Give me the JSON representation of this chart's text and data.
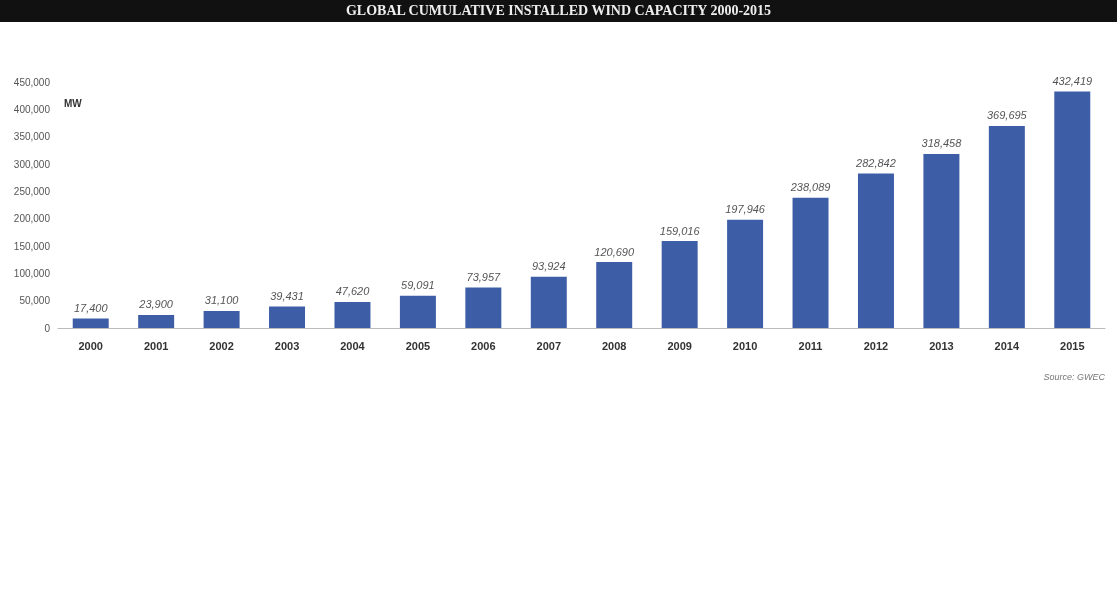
{
  "chart_data": {
    "type": "bar",
    "title": "GLOBAL CUMULATIVE INSTALLED WIND CAPACITY 2000-2015",
    "ylabel": "MW",
    "categories": [
      "2000",
      "2001",
      "2002",
      "2003",
      "2004",
      "2005",
      "2006",
      "2007",
      "2008",
      "2009",
      "2010",
      "2011",
      "2012",
      "2013",
      "2014",
      "2015"
    ],
    "values": [
      17400,
      23900,
      31100,
      39431,
      47620,
      59091,
      73957,
      93924,
      120690,
      159016,
      197946,
      238089,
      282842,
      318458,
      369695,
      432419
    ],
    "value_labels": [
      "17,400",
      "23,900",
      "31,100",
      "39,431",
      "47,620",
      "59,091",
      "73,957",
      "93,924",
      "120,690",
      "159,016",
      "197,946",
      "238,089",
      "282,842",
      "318,458",
      "369,695",
      "432,419"
    ],
    "color": "#3d5ea6",
    "ylim": [
      0,
      450000
    ],
    "yticks": [
      {
        "value": 0,
        "label": "0"
      },
      {
        "value": 50000,
        "label": "50,000"
      },
      {
        "value": 100000,
        "label": "100,000"
      },
      {
        "value": 150000,
        "label": "150,000"
      },
      {
        "value": 200000,
        "label": "200,000"
      },
      {
        "value": 250000,
        "label": "250,000"
      },
      {
        "value": 300000,
        "label": "300,000"
      },
      {
        "value": 350000,
        "label": "350,000"
      },
      {
        "value": 400000,
        "label": "400,000"
      },
      {
        "value": 450000,
        "label": "450,000"
      }
    ],
    "grid": false,
    "annotations": [
      "Source: GWEC"
    ]
  }
}
